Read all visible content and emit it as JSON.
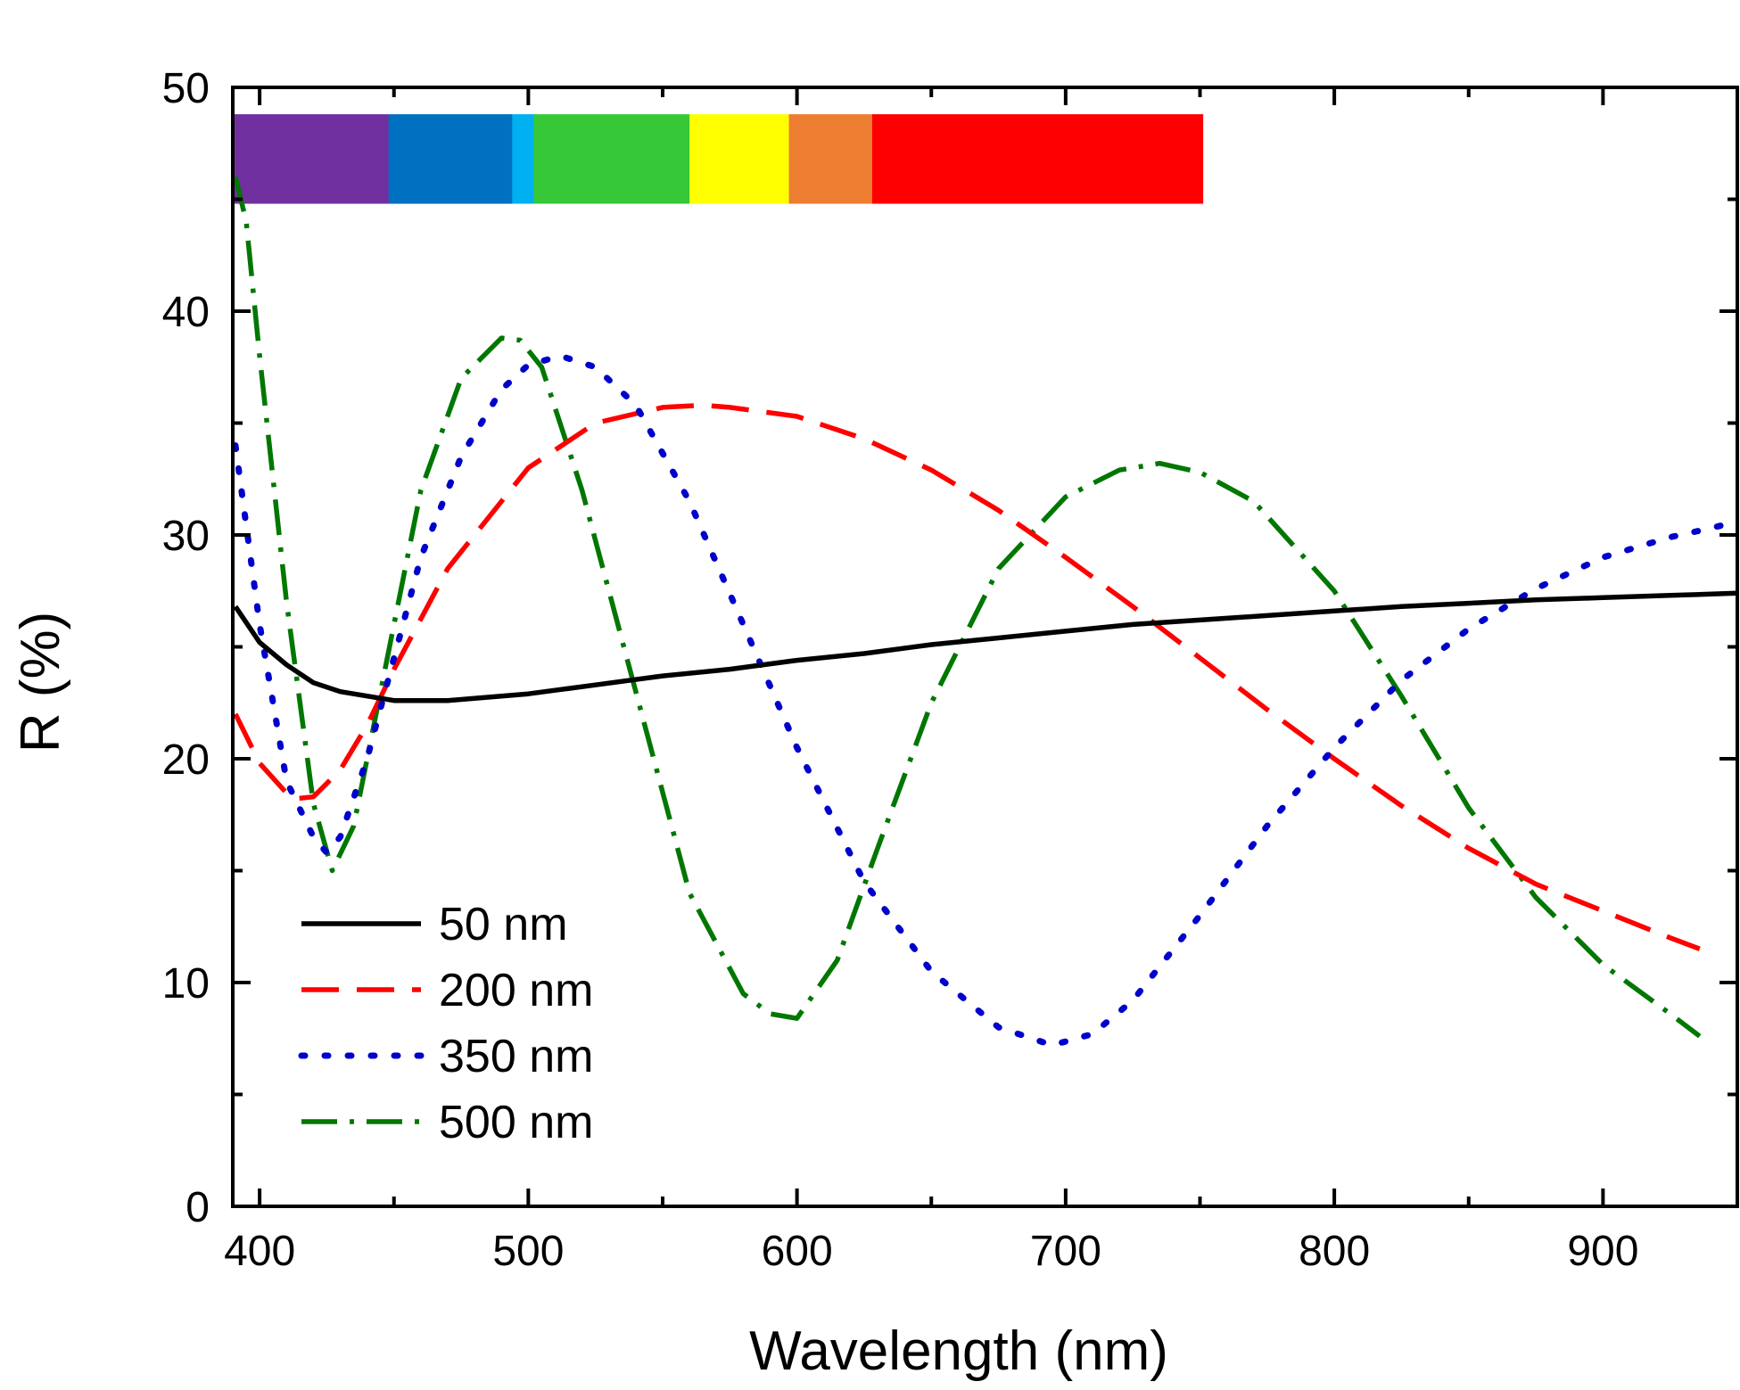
{
  "chart_data": {
    "type": "line",
    "xlabel": "Wavelength (nm)",
    "ylabel": "R (%)",
    "xlim": [
      390,
      950
    ],
    "ylim": [
      0,
      50
    ],
    "xticks": [
      400,
      500,
      600,
      700,
      800,
      900
    ],
    "xminor": [
      450,
      550,
      650,
      750,
      850
    ],
    "yticks": [
      0,
      10,
      20,
      30,
      40,
      50
    ],
    "yminor": [
      5,
      15,
      25,
      35,
      45
    ],
    "x_tick_labels": [
      "400",
      "500",
      "600",
      "700",
      "800",
      "900"
    ],
    "y_tick_labels": [
      "0",
      "10",
      "20",
      "30",
      "40",
      "50"
    ],
    "legend_position": "lower-left",
    "spectrum_bar": {
      "y_range": [
        44.8,
        48.8
      ],
      "bands": [
        {
          "from": 390,
          "to": 448,
          "color": "#7030A0"
        },
        {
          "from": 448,
          "to": 494,
          "color": "#0070C0"
        },
        {
          "from": 494,
          "to": 502,
          "color": "#00B0F0"
        },
        {
          "from": 502,
          "to": 560,
          "color": "#37C837"
        },
        {
          "from": 560,
          "to": 597,
          "color": "#FFFF00"
        },
        {
          "from": 597,
          "to": 628,
          "color": "#ED7D31"
        },
        {
          "from": 628,
          "to": 751,
          "color": "#FF0000"
        }
      ]
    },
    "series": [
      {
        "name": "50 nm",
        "color": "#000000",
        "dash": "solid",
        "x": [
          391,
          400,
          410,
          420,
          430,
          440,
          450,
          460,
          470,
          480,
          500,
          525,
          550,
          575,
          600,
          625,
          650,
          675,
          700,
          725,
          750,
          775,
          800,
          825,
          850,
          875,
          900,
          925,
          950
        ],
        "y": [
          26.8,
          25.2,
          24.2,
          23.4,
          23.0,
          22.8,
          22.6,
          22.6,
          22.6,
          22.7,
          22.9,
          23.3,
          23.7,
          24.0,
          24.4,
          24.7,
          25.1,
          25.4,
          25.7,
          26.0,
          26.2,
          26.4,
          26.6,
          26.8,
          26.95,
          27.1,
          27.2,
          27.3,
          27.4
        ]
      },
      {
        "name": "200 nm",
        "color": "#FF0000",
        "dash": "long-dash",
        "x": [
          391,
          400,
          412,
          420,
          430,
          440,
          450,
          470,
          500,
          525,
          550,
          565,
          575,
          600,
          625,
          650,
          675,
          700,
          725,
          750,
          775,
          800,
          825,
          850,
          875,
          900,
          925,
          936
        ],
        "y": [
          22.0,
          19.8,
          18.2,
          18.3,
          19.5,
          21.5,
          24.0,
          28.5,
          33.0,
          35.0,
          35.7,
          35.8,
          35.7,
          35.3,
          34.3,
          32.9,
          31.1,
          29.0,
          26.8,
          24.5,
          22.2,
          20.0,
          17.9,
          16.0,
          14.4,
          13.2,
          12.0,
          11.5
        ]
      },
      {
        "name": "350 nm",
        "color": "#0000CC",
        "dash": "dotted",
        "x": [
          391,
          400,
          410,
          420,
          425,
          430,
          440,
          450,
          460,
          475,
          490,
          500,
          512,
          525,
          540,
          560,
          580,
          600,
          625,
          650,
          675,
          695,
          710,
          725,
          750,
          775,
          800,
          825,
          850,
          875,
          900,
          925,
          940,
          950
        ],
        "y": [
          34.0,
          26.0,
          19.0,
          16.5,
          15.8,
          16.5,
          20.0,
          24.5,
          29.0,
          33.5,
          36.5,
          37.6,
          38.0,
          37.5,
          35.8,
          31.5,
          26.0,
          20.5,
          14.5,
          10.5,
          8.0,
          7.2,
          7.7,
          9.2,
          13.0,
          17.0,
          20.5,
          23.5,
          25.8,
          27.6,
          29.0,
          29.9,
          30.3,
          30.6
        ]
      },
      {
        "name": "500 nm",
        "color": "#007700",
        "dash": "dash-dot",
        "x": [
          391,
          395,
          400,
          410,
          420,
          427,
          435,
          445,
          460,
          475,
          490,
          497,
          505,
          520,
          540,
          560,
          580,
          590,
          600,
          615,
          630,
          650,
          675,
          700,
          720,
          735,
          750,
          770,
          800,
          825,
          850,
          875,
          900,
          925,
          936
        ],
        "y": [
          46.0,
          44.0,
          38.0,
          27.0,
          18.0,
          15.0,
          17.0,
          23.0,
          32.0,
          37.0,
          38.8,
          38.7,
          37.5,
          32.0,
          23.0,
          14.0,
          9.5,
          8.6,
          8.4,
          11.0,
          16.0,
          22.5,
          28.5,
          31.7,
          32.9,
          33.2,
          32.8,
          31.5,
          27.5,
          22.8,
          17.8,
          13.8,
          10.8,
          8.6,
          7.6
        ]
      }
    ]
  }
}
